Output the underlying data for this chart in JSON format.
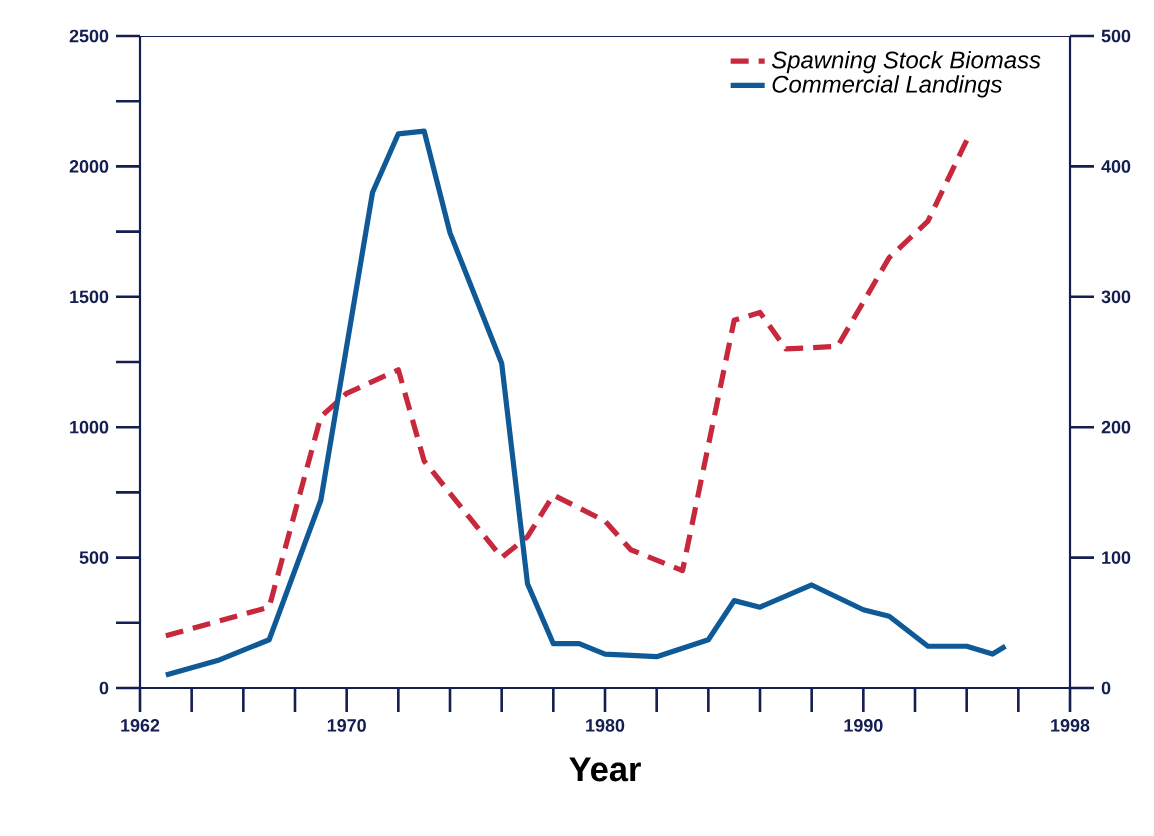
{
  "chart_data": {
    "type": "line",
    "xlabel": "Year",
    "xlim": [
      1962,
      1998
    ],
    "xticks": [
      1962,
      {
        "value": 1964,
        "label": null
      },
      {
        "value": 1966,
        "label": null
      },
      {
        "value": 1968,
        "label": null
      },
      1970,
      {
        "value": 1972,
        "label": null
      },
      {
        "value": 1974,
        "label": null
      },
      {
        "value": 1976,
        "label": null
      },
      {
        "value": 1978,
        "label": null
      },
      1980,
      {
        "value": 1982,
        "label": null
      },
      {
        "value": 1984,
        "label": null
      },
      {
        "value": 1986,
        "label": null
      },
      {
        "value": 1988,
        "label": null
      },
      1990,
      {
        "value": 1992,
        "label": null
      },
      {
        "value": 1994,
        "label": null
      },
      {
        "value": 1996,
        "label": null
      },
      1998
    ],
    "ylim": [
      0,
      2500
    ],
    "yticks": [
      0,
      {
        "value": 250,
        "label": null
      },
      500,
      {
        "value": 750,
        "label": null
      },
      1000,
      {
        "value": 1250,
        "label": null
      },
      1500,
      {
        "value": 1750,
        "label": null
      },
      2000,
      {
        "value": 2250,
        "label": null
      },
      2500
    ],
    "y2lim": [
      0,
      500
    ],
    "y2ticks": [
      0,
      100,
      200,
      300,
      400,
      500
    ],
    "legend": "top right",
    "series": [
      {
        "name": "Spawning Stock Biomass",
        "color": "#c8283c",
        "line_style": "dashed",
        "x": [
          1963,
          1967,
          1969,
          1970,
          1972,
          1973,
          1976,
          1977,
          1978,
          1980,
          1981,
          1983,
          1985,
          1986,
          1987,
          1989,
          1991,
          1992.5,
          1994
        ],
        "values": [
          200,
          310,
          1040,
          1130,
          1220,
          870,
          500,
          580,
          740,
          640,
          530,
          450,
          1410,
          1440,
          1300,
          1310,
          1650,
          1790,
          2100
        ]
      },
      {
        "name": "Commercial Landings",
        "color": "#0f5a96",
        "line_style": "solid",
        "axis": "y2",
        "x": [
          1963,
          1965,
          1967,
          1969,
          1971,
          1972,
          1973,
          1974,
          1976,
          1977,
          1978,
          1979,
          1980,
          1982,
          1984,
          1985,
          1986,
          1988,
          1990,
          1991,
          1992.5,
          1994,
          1995,
          1995.5
        ],
        "values": [
          10,
          21,
          37,
          144,
          380,
          425,
          427,
          349,
          249,
          80,
          34,
          34,
          26,
          24,
          37,
          67,
          62,
          79,
          60,
          55,
          32,
          32,
          26,
          32
        ]
      }
    ]
  }
}
